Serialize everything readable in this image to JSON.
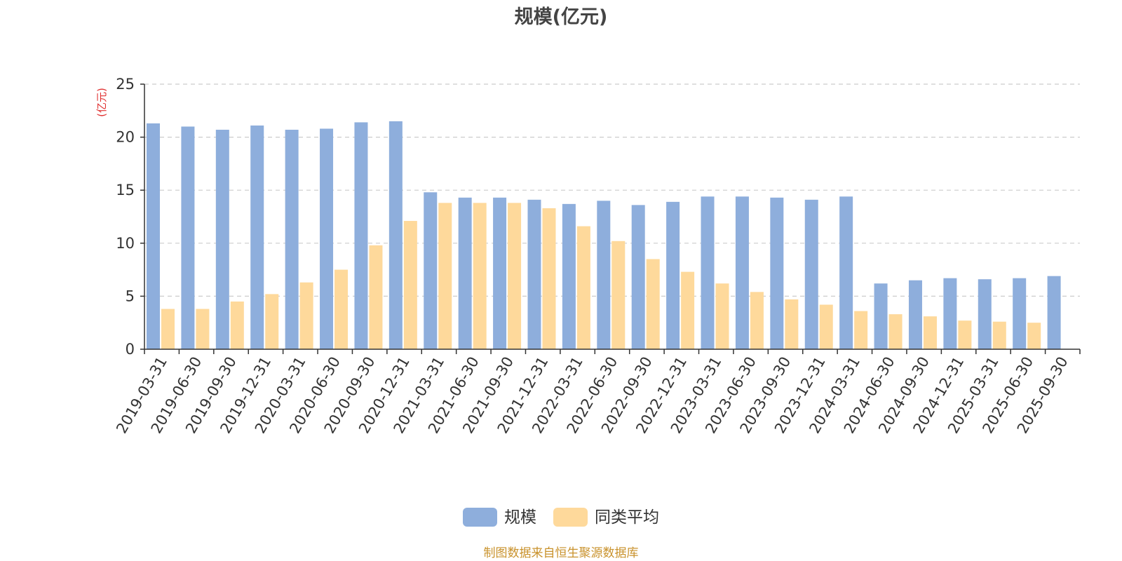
{
  "chart_data": {
    "type": "bar",
    "title": "规模(亿元)",
    "ylabel": "(亿元)",
    "xlabel": "",
    "ylim": [
      0,
      25
    ],
    "yticks": [
      0,
      5,
      10,
      15,
      20,
      25
    ],
    "grid": true,
    "legend_position": "bottom",
    "categories": [
      "2019-03-31",
      "2019-06-30",
      "2019-09-30",
      "2019-12-31",
      "2020-03-31",
      "2020-06-30",
      "2020-09-30",
      "2020-12-31",
      "2021-03-31",
      "2021-06-30",
      "2021-09-30",
      "2021-12-31",
      "2022-03-31",
      "2022-06-30",
      "2022-09-30",
      "2022-12-31",
      "2023-03-31",
      "2023-06-30",
      "2023-09-30",
      "2023-12-31",
      "2024-03-31",
      "2024-06-30",
      "2024-09-30",
      "2024-12-31",
      "2025-03-31",
      "2025-06-30",
      "2025-09-30"
    ],
    "series": [
      {
        "name": "规模",
        "color": "#8eaedc",
        "values": [
          21.3,
          21.0,
          20.7,
          21.1,
          20.7,
          20.8,
          21.4,
          21.5,
          14.8,
          14.3,
          14.3,
          14.1,
          13.7,
          14.0,
          13.6,
          13.9,
          14.4,
          14.4,
          14.3,
          14.1,
          14.4,
          6.2,
          6.5,
          6.7,
          6.6,
          6.7,
          6.9
        ]
      },
      {
        "name": "同类平均",
        "color": "#fed99b",
        "values": [
          3.8,
          3.8,
          4.5,
          5.2,
          6.3,
          7.5,
          9.8,
          12.1,
          13.8,
          13.8,
          13.8,
          13.3,
          11.6,
          10.2,
          8.5,
          7.3,
          6.2,
          5.4,
          4.7,
          4.2,
          3.6,
          3.3,
          3.1,
          2.7,
          2.6,
          2.5,
          null
        ]
      }
    ],
    "source": "制图数据来自恒生聚源数据库"
  }
}
